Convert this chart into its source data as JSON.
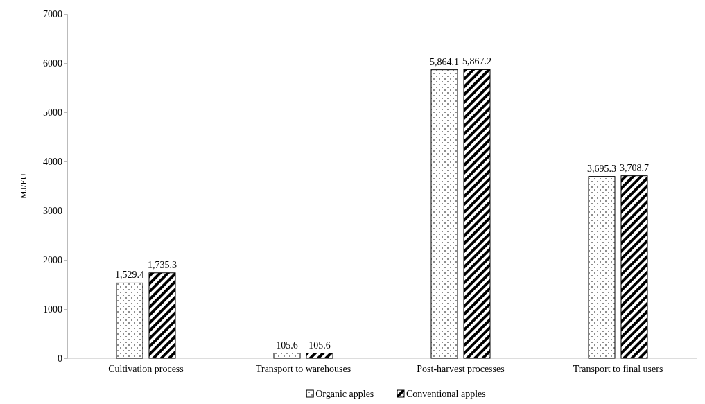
{
  "chart_data": {
    "type": "bar",
    "ylabel": "MJ/FU",
    "categories": [
      "Cultivation process",
      "Transport to warehouses",
      "Post-harvest processes",
      "Transport to final users"
    ],
    "series": [
      {
        "name": "Organic apples",
        "color": "#000000",
        "values": [
          1529.4,
          105.6,
          5864.1,
          3695.3
        ],
        "value_labels": [
          "1,529.4",
          "105.6",
          "5,864.1",
          "3,695.3"
        ]
      },
      {
        "name": "Conventional apples",
        "color": "#000000",
        "values": [
          1735.3,
          105.6,
          5867.2,
          3708.7
        ],
        "value_labels": [
          "1,735.3",
          "105.6",
          "5,867.2",
          "3,708.7"
        ]
      }
    ],
    "ylim": [
      0,
      7000
    ],
    "yticks": [
      0,
      1000,
      2000,
      3000,
      4000,
      5000,
      6000,
      7000
    ],
    "legend": "bottom"
  }
}
